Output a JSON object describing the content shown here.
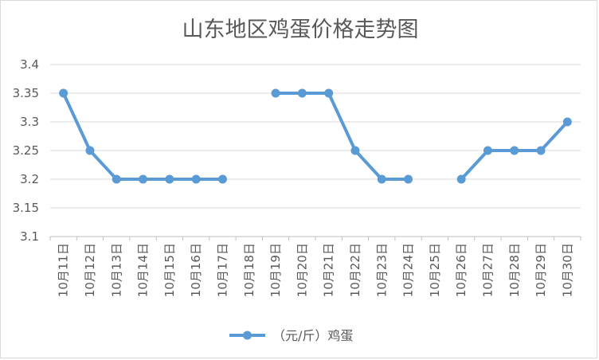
{
  "chart_data": {
    "type": "line",
    "title": "山东地区鸡蛋价格走势图",
    "xlabel": "",
    "ylabel": "",
    "categories": [
      "10月11日",
      "10月12日",
      "10月13日",
      "10月14日",
      "10月15日",
      "10月16日",
      "10月17日",
      "10月18日",
      "10月19日",
      "10月20日",
      "10月21日",
      "10月22日",
      "10月23日",
      "10月24日",
      "10月25日",
      "10月26日",
      "10月27日",
      "10月28日",
      "10月29日",
      "10月30日"
    ],
    "series": [
      {
        "name": "（元/斤）鸡蛋",
        "color": "#5b9bd5",
        "values": [
          3.35,
          3.25,
          3.2,
          3.2,
          3.2,
          3.2,
          3.2,
          null,
          3.35,
          3.35,
          3.35,
          3.25,
          3.2,
          3.2,
          null,
          3.2,
          3.25,
          3.25,
          3.25,
          3.3
        ]
      }
    ],
    "ylim": [
      3.1,
      3.4
    ],
    "yticks": [
      "3.1",
      "3.15",
      "3.2",
      "3.25",
      "3.3",
      "3.35",
      "3.4"
    ],
    "grid": true,
    "legend": "bottom"
  }
}
